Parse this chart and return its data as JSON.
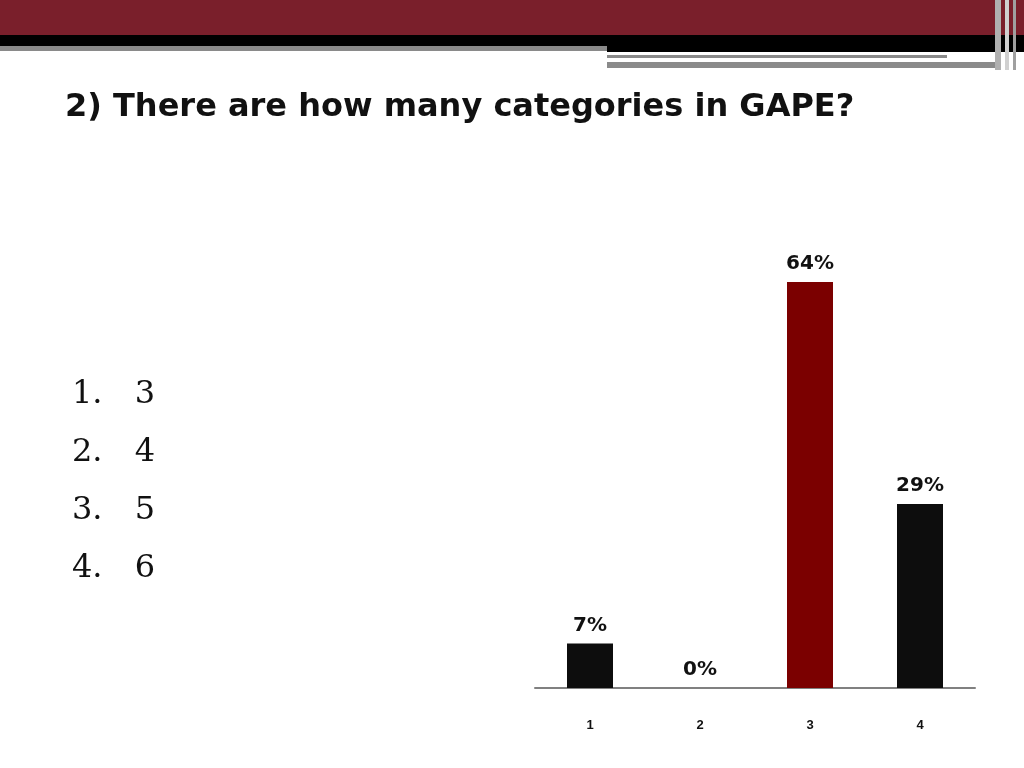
{
  "chart_data": {
    "type": "bar",
    "title": "2) There are how many categories in GAPE?",
    "categories": [
      "1",
      "2",
      "3",
      "4"
    ],
    "values": [
      7,
      0,
      64,
      29
    ],
    "colors": [
      "#0d0d0d",
      "#0d0d0d",
      "#7b0000",
      "#0d0d0d"
    ],
    "value_labels": [
      "7%",
      "0%",
      "64%",
      "29%"
    ],
    "tick_labels": "x",
    "annotations": [
      "1. 3",
      "2. 4",
      "3. 5",
      "4. 6"
    ]
  }
}
